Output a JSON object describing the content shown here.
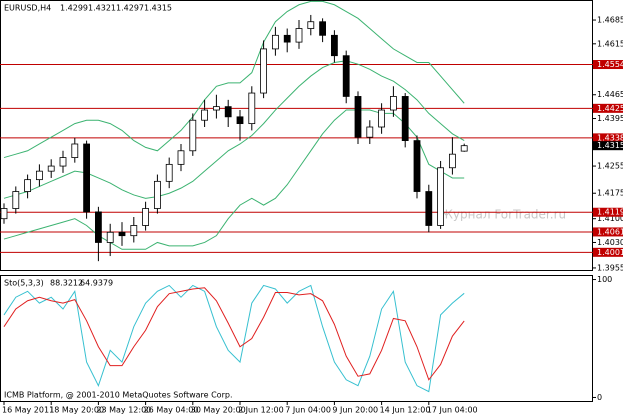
{
  "chart_data": [
    {
      "type": "candlestick",
      "title": "EURUSD,H4",
      "categories": [
        "16 May 2011",
        null,
        null,
        null,
        "18 May 20:00",
        null,
        null,
        null,
        "23 May 12:00",
        null,
        null,
        null,
        "26 May 04:00",
        null,
        null,
        null,
        "30 May 20:00",
        null,
        null,
        null,
        "2 Jun 12:00",
        null,
        null,
        null,
        "7 Jun 04:00",
        null,
        null,
        null,
        "9 Jun 20:00",
        null,
        null,
        null,
        "14 Jun 12:00",
        null,
        null,
        null,
        "17 Jun 04:00",
        null,
        null,
        null
      ],
      "open": [
        1.41,
        1.413,
        1.418,
        1.4215,
        1.424,
        1.4255,
        1.428,
        1.432,
        1.412,
        1.403,
        1.406,
        1.405,
        1.408,
        1.413,
        1.421,
        1.426,
        1.43,
        1.439,
        1.442,
        1.443,
        1.44,
        1.438,
        1.447,
        1.46,
        1.464,
        1.462,
        1.466,
        1.468,
        1.464,
        1.458,
        1.446,
        1.434,
        1.437,
        1.442,
        1.446,
        1.433,
        1.418,
        1.408,
        1.425,
        1.4299
      ],
      "high": [
        1.4145,
        1.4195,
        1.423,
        1.426,
        1.4275,
        1.43,
        1.4338,
        1.433,
        1.4135,
        1.4085,
        1.409,
        1.4105,
        1.415,
        1.423,
        1.428,
        1.432,
        1.441,
        1.445,
        1.4465,
        1.445,
        1.442,
        1.449,
        1.4625,
        1.4665,
        1.466,
        1.4685,
        1.47,
        1.469,
        1.4655,
        1.4595,
        1.4475,
        1.439,
        1.444,
        1.449,
        1.447,
        1.4345,
        1.42,
        1.427,
        1.434,
        1.4321
      ],
      "low": [
        1.4085,
        1.4115,
        1.416,
        1.4195,
        1.422,
        1.4235,
        1.4265,
        1.41,
        1.3975,
        1.399,
        1.402,
        1.403,
        1.4065,
        1.4115,
        1.419,
        1.424,
        1.4285,
        1.437,
        1.4395,
        1.437,
        1.433,
        1.436,
        1.4455,
        1.458,
        1.459,
        1.46,
        1.464,
        1.462,
        1.456,
        1.444,
        1.432,
        1.432,
        1.435,
        1.44,
        1.431,
        1.416,
        1.406,
        1.407,
        1.423,
        1.4297
      ],
      "close": [
        1.413,
        1.418,
        1.4215,
        1.424,
        1.4255,
        1.428,
        1.432,
        1.412,
        1.403,
        1.406,
        1.405,
        1.408,
        1.413,
        1.421,
        1.426,
        1.43,
        1.439,
        1.442,
        1.443,
        1.44,
        1.438,
        1.447,
        1.46,
        1.464,
        1.462,
        1.466,
        1.468,
        1.464,
        1.458,
        1.446,
        1.434,
        1.437,
        1.442,
        1.446,
        1.433,
        1.418,
        1.408,
        1.425,
        1.429,
        1.4315
      ],
      "overlays": [
        {
          "color": "#3cb371",
          "values": [
            1.428,
            1.429,
            1.43,
            1.432,
            1.434,
            1.436,
            1.438,
            1.439,
            1.439,
            1.438,
            1.436,
            1.433,
            1.431,
            1.43,
            1.433,
            1.436,
            1.44,
            1.445,
            1.449,
            1.45,
            1.45,
            1.453,
            1.462,
            1.468,
            1.471,
            1.473,
            1.474,
            1.474,
            1.473,
            1.471,
            1.469,
            1.466,
            1.463,
            1.46,
            1.458,
            1.456,
            1.456,
            1.452,
            1.448,
            1.444
          ]
        },
        {
          "color": "#3cb371",
          "values": [
            1.416,
            1.417,
            1.418,
            1.4195,
            1.421,
            1.4225,
            1.424,
            1.4235,
            1.422,
            1.4205,
            1.4185,
            1.417,
            1.416,
            1.4165,
            1.4175,
            1.419,
            1.421,
            1.424,
            1.427,
            1.43,
            1.432,
            1.4345,
            1.438,
            1.442,
            1.4455,
            1.449,
            1.452,
            1.4545,
            1.456,
            1.4565,
            1.4555,
            1.454,
            1.452,
            1.4505,
            1.448,
            1.445,
            1.441,
            1.438,
            1.435,
            1.433
          ]
        },
        {
          "color": "#3cb371",
          "values": [
            1.404,
            1.405,
            1.406,
            1.407,
            1.408,
            1.409,
            1.41,
            1.408,
            1.405,
            1.403,
            1.401,
            1.401,
            1.401,
            1.403,
            1.402,
            1.402,
            1.402,
            1.403,
            1.405,
            1.41,
            1.414,
            1.416,
            1.414,
            1.416,
            1.42,
            1.425,
            1.43,
            1.435,
            1.439,
            1.442,
            1.442,
            1.442,
            1.441,
            1.441,
            1.438,
            1.434,
            1.426,
            1.424,
            1.422,
            1.422
          ]
        }
      ],
      "levels": [
        1.4554,
        1.4425,
        1.4338,
        1.4119,
        1.4061,
        1.4001
      ],
      "level_color": "#c00000",
      "current": 1.4315,
      "ylim": [
        1.3946,
        1.4744
      ],
      "yticks": [
        1.4685,
        1.4615,
        1.4465,
        1.4395,
        1.4255,
        1.4175,
        {
          "value": 1.41,
          "label": "1.4100"
        },
        {
          "value": 1.403,
          "label": "1.4030"
        },
        1.3955
      ]
    },
    {
      "type": "line",
      "title": "Sto(5,3,3)",
      "series": [
        {
          "color": "#37c0d0",
          "values": [
            70,
            85,
            90,
            80,
            85,
            75,
            90,
            30,
            10,
            40,
            30,
            60,
            80,
            90,
            95,
            85,
            95,
            90,
            60,
            40,
            30,
            80,
            95,
            92,
            80,
            90,
            95,
            60,
            30,
            15,
            10,
            35,
            75,
            90,
            30,
            10,
            5,
            70,
            80,
            88.3212
          ]
        },
        {
          "color": "#e02020",
          "values": [
            60,
            75,
            82,
            85,
            82,
            80,
            83,
            65,
            43,
            27,
            27,
            43,
            57,
            77,
            88,
            90,
            92,
            93,
            82,
            63,
            43,
            50,
            68,
            89,
            89,
            87,
            88,
            82,
            62,
            35,
            18,
            20,
            40,
            67,
            65,
            43,
            15,
            28,
            52,
            64.9379
          ]
        }
      ],
      "ylim": [
        -3,
        103
      ],
      "yticks": [
        100,
        0
      ]
    }
  ],
  "watermark": "Журнал ForTrader.ru",
  "footer": "ICMB Platform, @ 2001-2010 MetaQuotes Software Corp."
}
